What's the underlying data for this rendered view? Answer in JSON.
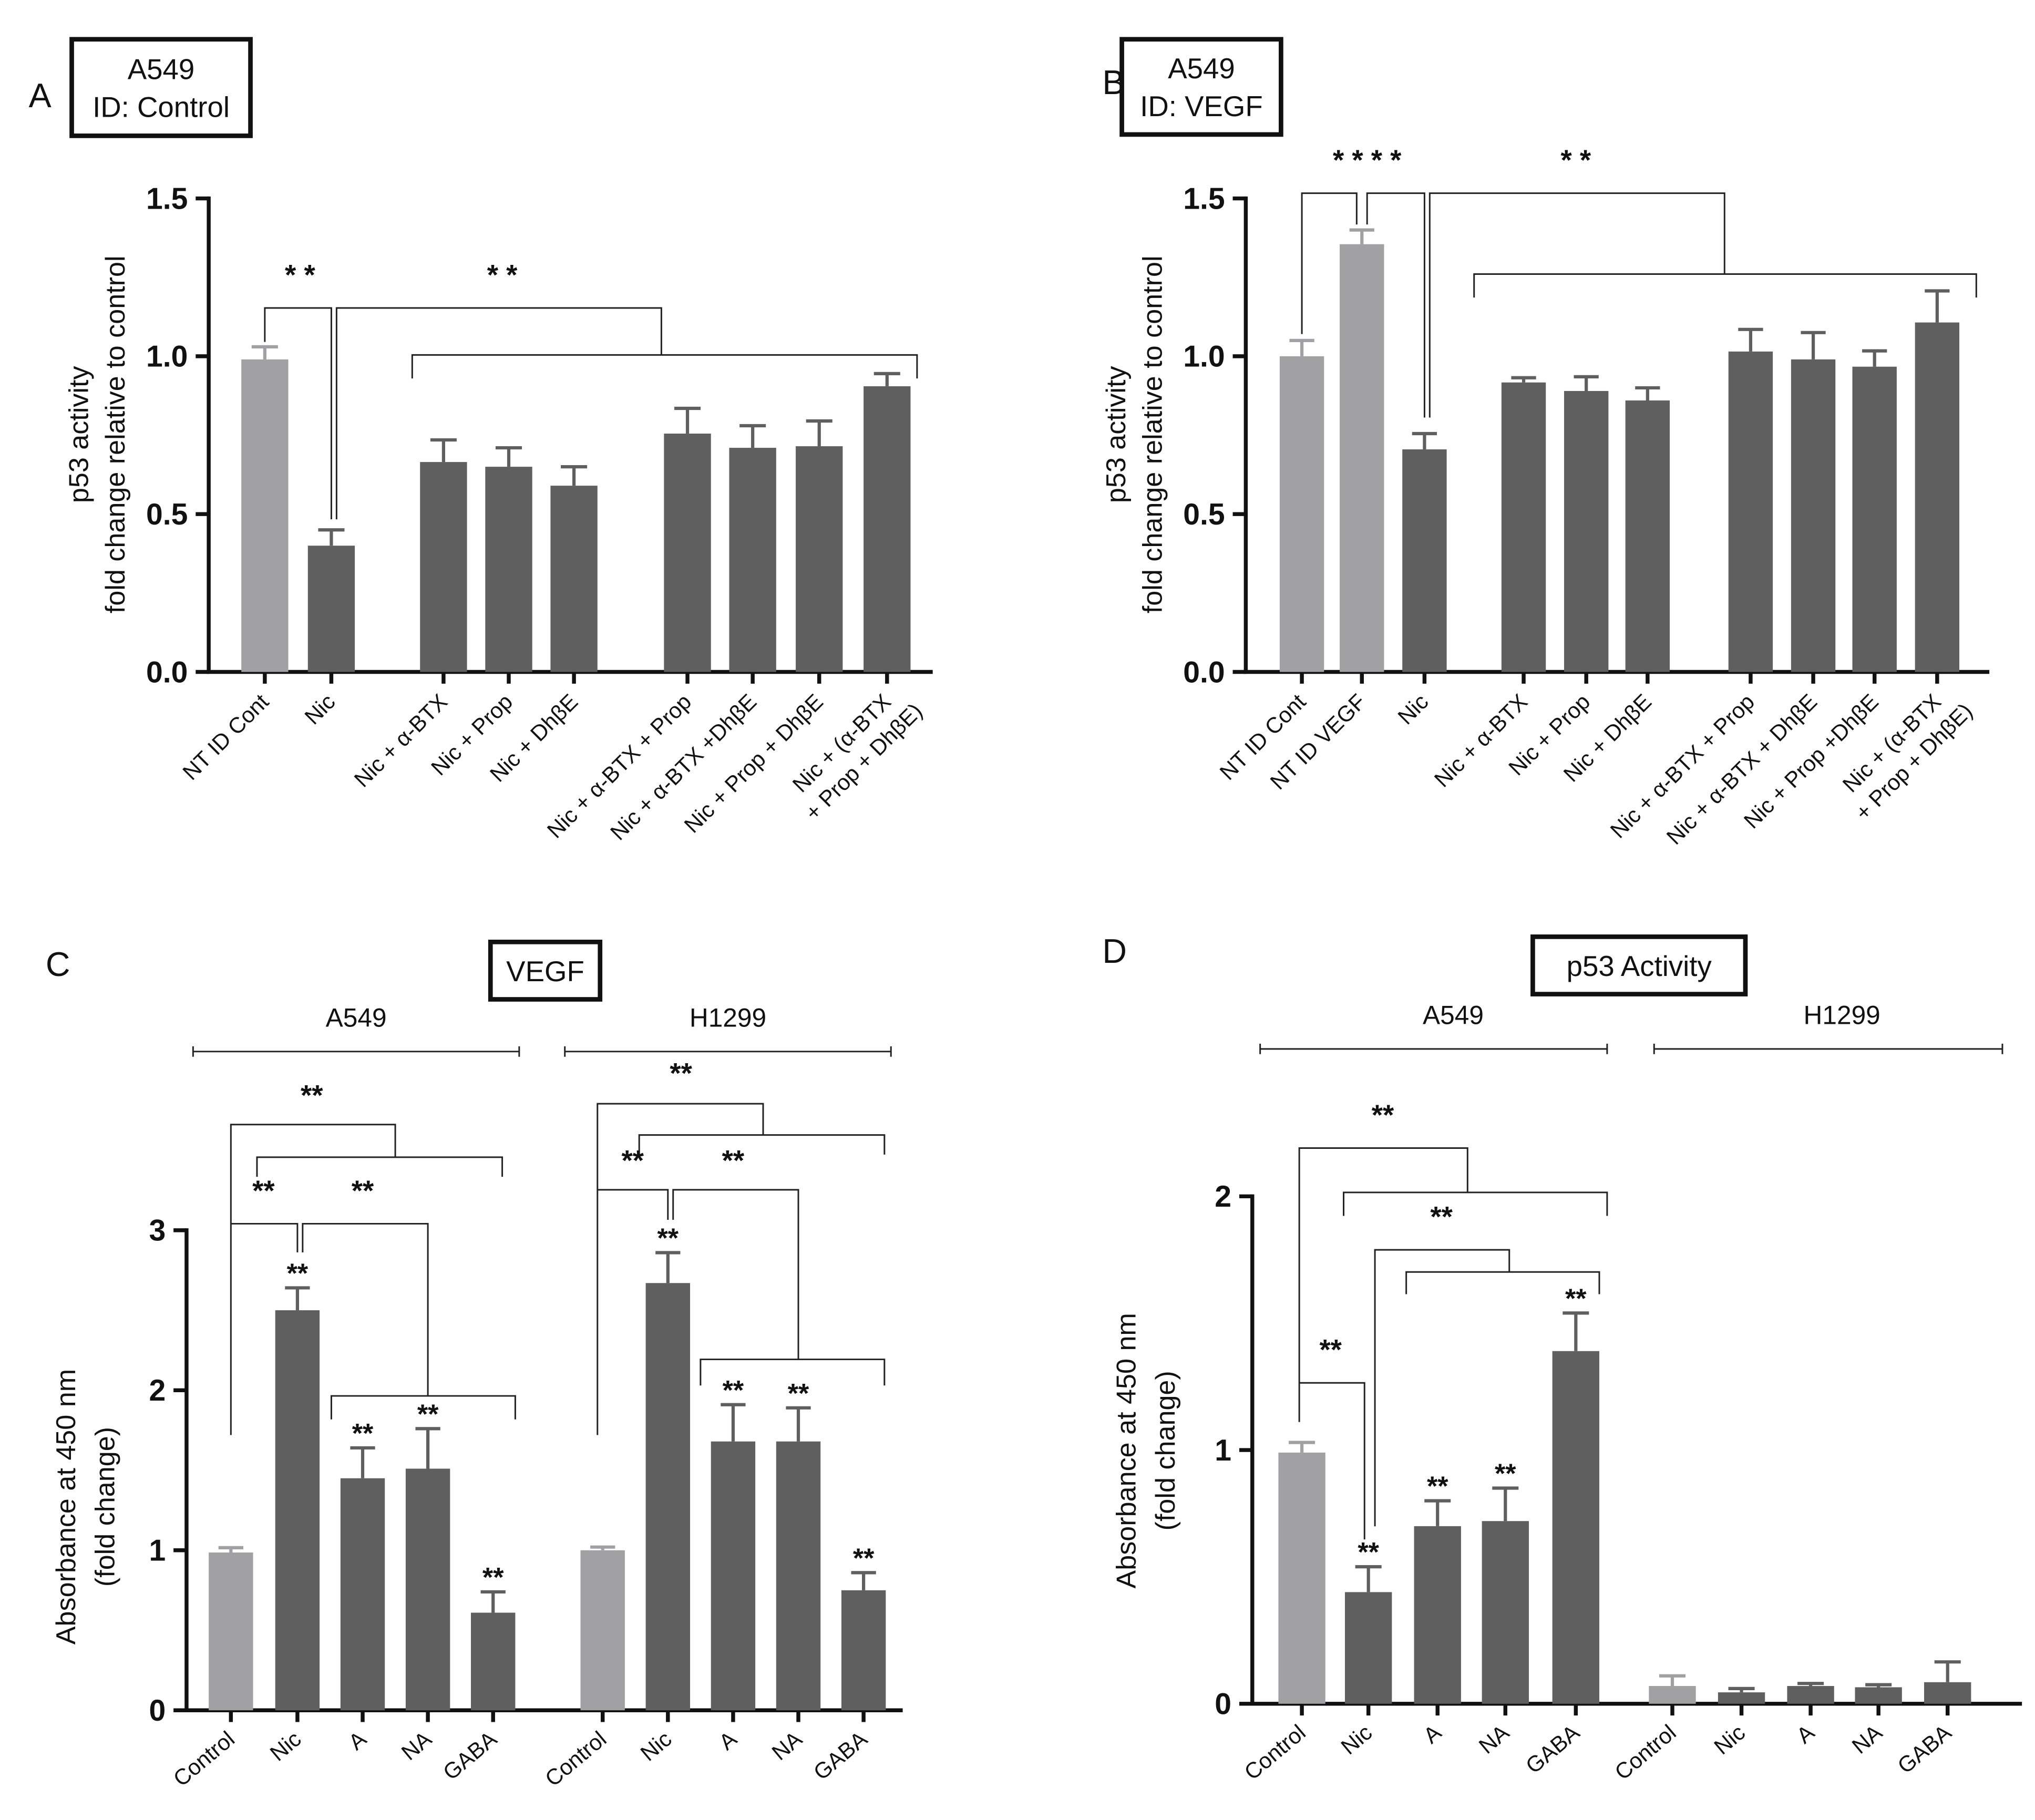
{
  "chart_data": [
    {
      "type": "bar",
      "panel": "A",
      "title": [
        "A549",
        "ID: Control"
      ],
      "ylabel": [
        "p53 activity",
        "fold change relative to control"
      ],
      "categories": [
        "NT ID Cont",
        "Nic",
        "Nic + α-BTX",
        "Nic + Prop",
        "Nic + DhβE",
        "Nic + α-BTX + Prop",
        "Nic + α-BTX +DhβE",
        "Nic + Prop + DhβE",
        [
          "Nic + (α-BTX",
          "+ Prop + DhβE)"
        ]
      ],
      "values": [
        0.99,
        0.4,
        0.665,
        0.65,
        0.59,
        0.755,
        0.71,
        0.715,
        0.905
      ],
      "errors": [
        0.04,
        0.05,
        0.07,
        0.06,
        0.06,
        0.08,
        0.07,
        0.08,
        0.04
      ],
      "colors": [
        "#a1a1a4",
        "#5f5f5f",
        "#5f5f5f",
        "#5f5f5f",
        "#5f5f5f",
        "#5f5f5f",
        "#5f5f5f",
        "#5f5f5f",
        "#5f5f5f"
      ],
      "ylim": [
        0,
        1.5
      ],
      "yticks": [
        {
          "value": 0,
          "label": "0.0"
        },
        0.5,
        {
          "value": 1,
          "label": "1.0"
        },
        1.5
      ],
      "annotations": [
        "* *",
        "* *"
      ]
    },
    {
      "type": "bar",
      "panel": "B",
      "title": [
        "A549",
        "ID: VEGF"
      ],
      "ylabel": [
        "p53 activity",
        "fold change relative to control"
      ],
      "categories": [
        "NT ID Cont",
        "NT ID VEGF",
        "Nic",
        "Nic + α-BTX",
        "Nic + Prop",
        "Nic + DhβE",
        "Nic + α-BTX + Prop",
        "Nic + α-BTX + DhβE",
        "Nic + Prop +DhβE",
        [
          "Nic + (α-BTX",
          "+ Prop + DhβE)"
        ]
      ],
      "values": [
        1.0,
        1.355,
        0.705,
        0.917,
        0.89,
        0.86,
        1.015,
        0.99,
        0.967,
        1.107
      ],
      "errors": [
        0.05,
        0.045,
        0.05,
        0.015,
        0.045,
        0.04,
        0.07,
        0.085,
        0.05,
        0.1
      ],
      "colors": [
        "#a1a1a4",
        "#a1a1a4",
        "#5f5f5f",
        "#5f5f5f",
        "#5f5f5f",
        "#5f5f5f",
        "#5f5f5f",
        "#5f5f5f",
        "#5f5f5f",
        "#5f5f5f"
      ],
      "ylim": [
        0,
        1.5
      ],
      "yticks": [
        {
          "value": 0,
          "label": "0.0"
        },
        0.5,
        {
          "value": 1,
          "label": "1.0"
        },
        1.5
      ],
      "annotations": [
        "* * * *",
        "* *"
      ]
    },
    {
      "type": "bar",
      "panel": "C",
      "title": "VEGF",
      "ylabel": [
        "Absorbance at 450 nm",
        "(fold change)"
      ],
      "groups": [
        "A549",
        "H1299"
      ],
      "categories": [
        "Control",
        "Nic",
        "A",
        "NA",
        "GABA",
        "Control",
        "Nic",
        "A",
        "NA",
        "GABA"
      ],
      "values": [
        0.986,
        2.5,
        1.45,
        1.51,
        0.61,
        1.0,
        2.67,
        1.68,
        1.68,
        0.75
      ],
      "errors": [
        0.03,
        0.14,
        0.19,
        0.25,
        0.13,
        0.02,
        0.19,
        0.23,
        0.21,
        0.11
      ],
      "colors": [
        "#a1a1a4",
        "#5f5f5f",
        "#5f5f5f",
        "#5f5f5f",
        "#5f5f5f",
        "#a1a1a4",
        "#5f5f5f",
        "#5f5f5f",
        "#5f5f5f",
        "#5f5f5f"
      ],
      "significance": [
        null,
        "**",
        "**",
        "**",
        "**",
        null,
        "**",
        "**",
        "**",
        "**"
      ],
      "ylim": [
        0,
        3
      ],
      "yticks": [
        0,
        1,
        2,
        3
      ],
      "annotations": [
        "**",
        "**",
        "**",
        "**",
        "**",
        "**"
      ]
    },
    {
      "type": "bar",
      "panel": "D",
      "title": "p53 Activity",
      "ylabel": [
        "Absorbance at 450 nm",
        "(fold change)"
      ],
      "groups": [
        "A549",
        "H1299"
      ],
      "categories": [
        "Control",
        "Nic",
        "A",
        "NA",
        "GABA",
        "Control",
        "Nic",
        "A",
        "NA",
        "GABA"
      ],
      "values": [
        0.99,
        0.44,
        0.7,
        0.72,
        1.39,
        0.07,
        0.045,
        0.07,
        0.065,
        0.085
      ],
      "errors": [
        0.04,
        0.1,
        0.1,
        0.13,
        0.15,
        0.04,
        0.015,
        0.01,
        0.01,
        0.08
      ],
      "colors": [
        "#a1a1a4",
        "#5f5f5f",
        "#5f5f5f",
        "#5f5f5f",
        "#5f5f5f",
        "#a1a1a4",
        "#5f5f5f",
        "#5f5f5f",
        "#5f5f5f",
        "#5f5f5f"
      ],
      "significance": [
        null,
        "**",
        "**",
        "**",
        "**",
        null,
        null,
        null,
        null,
        null
      ],
      "ylim": [
        0,
        2
      ],
      "yticks": [
        0,
        1,
        2
      ],
      "annotations": [
        "**",
        "**",
        "**"
      ]
    }
  ]
}
